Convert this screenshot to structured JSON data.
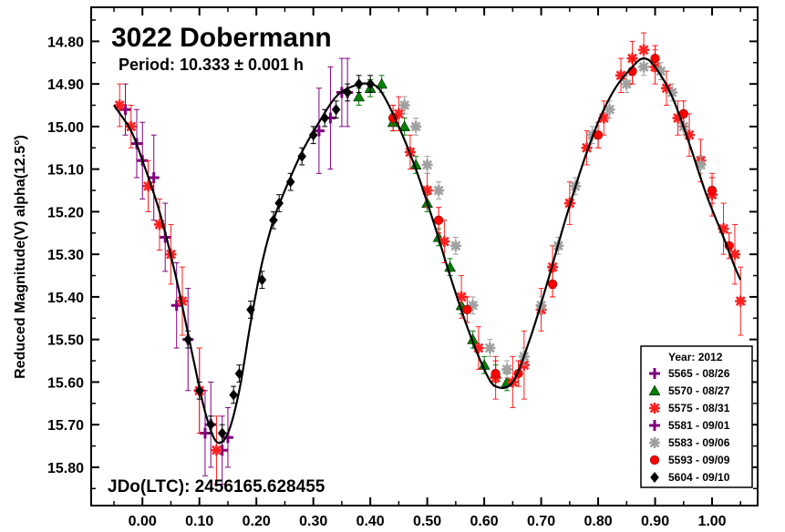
{
  "chart_data": {
    "type": "scatter",
    "title": "3022 Dobermann",
    "subtitle": "Period: 10.333 ± 0.001 h",
    "ylabel": "Reduced Magnitude(V) alpha(12.5°)",
    "xlabel": "",
    "annotation": "JDo(LTC): 2456165.628455",
    "xlim": [
      -0.09,
      1.08
    ],
    "ylim": [
      15.89,
      14.72
    ],
    "y_inverted": true,
    "grid": false,
    "x_ticks": [
      0.0,
      0.1,
      0.2,
      0.3,
      0.4,
      0.5,
      0.6,
      0.7,
      0.8,
      0.9,
      1.0
    ],
    "x_tick_labels": [
      "0.00",
      "0.10",
      "0.20",
      "0.30",
      "0.40",
      "0.50",
      "0.60",
      "0.70",
      "0.80",
      "0.90",
      "1.00"
    ],
    "y_ticks": [
      14.8,
      14.9,
      15.0,
      15.1,
      15.2,
      15.3,
      15.4,
      15.5,
      15.6,
      15.7,
      15.8
    ],
    "y_tick_labels": [
      "14.80",
      "14.90",
      "15.00",
      "15.10",
      "15.20",
      "15.30",
      "15.40",
      "15.50",
      "15.60",
      "15.70",
      "15.80"
    ],
    "legend": {
      "title": "Year: 2012",
      "position": "bottom-right",
      "entries": [
        {
          "label": "5565 - 08/26",
          "marker": "plus",
          "color": "#800080"
        },
        {
          "label": "5570 - 08/27",
          "marker": "triangle",
          "color": "#008000"
        },
        {
          "label": "5575 - 08/31",
          "marker": "asterisk",
          "color": "#ff2020"
        },
        {
          "label": "5581 - 09/01",
          "marker": "plus",
          "color": "#800080"
        },
        {
          "label": "5583 - 09/06",
          "marker": "asterisk",
          "color": "#a0a0a0"
        },
        {
          "label": "5593 - 09/09",
          "marker": "circle",
          "color": "#ff0000"
        },
        {
          "label": "5604 - 09/10",
          "marker": "diamond",
          "color": "#000000"
        }
      ]
    },
    "fit_curve": {
      "x": [
        -0.05,
        -0.02,
        0.0,
        0.03,
        0.06,
        0.09,
        0.11,
        0.13,
        0.15,
        0.17,
        0.19,
        0.21,
        0.23,
        0.25,
        0.28,
        0.31,
        0.34,
        0.37,
        0.4,
        0.42,
        0.45,
        0.48,
        0.51,
        0.54,
        0.57,
        0.6,
        0.62,
        0.65,
        0.68,
        0.71,
        0.74,
        0.77,
        0.8,
        0.83,
        0.86,
        0.88,
        0.9,
        0.93,
        0.96,
        0.99,
        1.02,
        1.04,
        1.05
      ],
      "y": [
        14.95,
        15.01,
        15.08,
        15.2,
        15.36,
        15.55,
        15.67,
        15.74,
        15.72,
        15.62,
        15.46,
        15.32,
        15.22,
        15.15,
        15.06,
        14.99,
        14.93,
        14.905,
        14.9,
        14.92,
        15.0,
        15.1,
        15.22,
        15.35,
        15.47,
        15.57,
        15.61,
        15.6,
        15.5,
        15.37,
        15.23,
        15.1,
        14.99,
        14.91,
        14.86,
        14.84,
        14.86,
        14.93,
        15.04,
        15.16,
        15.26,
        15.33,
        15.36
      ]
    },
    "series": [
      {
        "name": "5565 - 08/26",
        "marker": "plus",
        "color": "#800080",
        "x": [
          -0.03,
          -0.01,
          0.0,
          0.02,
          0.04,
          0.06,
          0.08,
          0.1,
          0.11,
          0.12,
          0.14,
          0.15
        ],
        "y": [
          14.96,
          15.04,
          15.08,
          15.12,
          15.26,
          15.42,
          15.5,
          15.62,
          15.72,
          15.7,
          15.76,
          15.73
        ],
        "err": [
          0.06,
          0.08,
          0.09,
          0.1,
          0.08,
          0.1,
          0.12,
          0.1,
          0.1,
          0.1,
          0.08,
          0.07
        ]
      },
      {
        "name": "5570 - 08/27",
        "marker": "triangle",
        "color": "#008000",
        "x": [
          0.38,
          0.4,
          0.42,
          0.44,
          0.46,
          0.48,
          0.5,
          0.52,
          0.54,
          0.56,
          0.58,
          0.6,
          0.62,
          0.64
        ],
        "y": [
          14.93,
          14.91,
          14.9,
          14.99,
          15.0,
          15.09,
          15.18,
          15.26,
          15.33,
          15.42,
          15.5,
          15.56,
          15.58,
          15.6
        ],
        "err": [
          0.02,
          0.02,
          0.02,
          0.02,
          0.02,
          0.02,
          0.02,
          0.02,
          0.02,
          0.02,
          0.02,
          0.02,
          0.02,
          0.02
        ]
      },
      {
        "name": "5575 - 08/31",
        "marker": "asterisk",
        "color": "#ff2020",
        "x": [
          -0.04,
          -0.02,
          0.01,
          0.03,
          0.05,
          0.07,
          0.1,
          0.13,
          0.45,
          0.47,
          0.5,
          0.53,
          0.56,
          0.59,
          0.62,
          0.65,
          0.67,
          0.7,
          0.72,
          0.75,
          0.78,
          0.81,
          0.84,
          0.86,
          0.88,
          0.9,
          0.92,
          0.94,
          0.96,
          0.98,
          1.0,
          1.02,
          1.04,
          1.05
        ],
        "y": [
          14.95,
          15.0,
          15.14,
          15.23,
          15.3,
          15.41,
          15.62,
          15.76,
          14.97,
          15.06,
          15.15,
          15.27,
          15.4,
          15.52,
          15.59,
          15.6,
          15.56,
          15.43,
          15.33,
          15.18,
          15.05,
          14.98,
          14.88,
          14.84,
          14.82,
          14.86,
          14.91,
          14.98,
          15.02,
          15.08,
          15.16,
          15.24,
          15.3,
          15.41
        ],
        "err": [
          0.05,
          0.05,
          0.06,
          0.06,
          0.07,
          0.08,
          0.1,
          0.08,
          0.04,
          0.04,
          0.04,
          0.05,
          0.05,
          0.05,
          0.05,
          0.06,
          0.08,
          0.05,
          0.05,
          0.05,
          0.04,
          0.04,
          0.04,
          0.04,
          0.04,
          0.04,
          0.04,
          0.04,
          0.05,
          0.05,
          0.05,
          0.06,
          0.07,
          0.08
        ]
      },
      {
        "name": "5581 - 09/01",
        "marker": "plus",
        "color": "#800080",
        "x": [
          0.31,
          0.33,
          0.35,
          0.36
        ],
        "y": [
          15.01,
          14.98,
          14.92,
          14.92
        ],
        "err": [
          0.1,
          0.12,
          0.08,
          0.08
        ]
      },
      {
        "name": "5583 - 09/06",
        "marker": "asterisk",
        "color": "#a0a0a0",
        "x": [
          0.46,
          0.48,
          0.5,
          0.52,
          0.55,
          0.58,
          0.61,
          0.64,
          0.67,
          0.7,
          0.73,
          0.76,
          0.79,
          0.82,
          0.85,
          0.88,
          0.91,
          0.93,
          0.95,
          0.98
        ],
        "y": [
          14.95,
          15.0,
          15.09,
          15.15,
          15.28,
          15.42,
          15.52,
          15.57,
          15.54,
          15.42,
          15.28,
          15.14,
          15.02,
          14.96,
          14.9,
          14.86,
          14.87,
          14.92,
          15.0,
          15.09
        ],
        "err": [
          0.02,
          0.02,
          0.02,
          0.02,
          0.02,
          0.02,
          0.02,
          0.02,
          0.02,
          0.02,
          0.02,
          0.02,
          0.02,
          0.02,
          0.02,
          0.02,
          0.02,
          0.02,
          0.02,
          0.02
        ]
      },
      {
        "name": "5593 - 09/09",
        "marker": "circle",
        "color": "#ff0000",
        "x": [
          0.44,
          0.52,
          0.57,
          0.62,
          0.66,
          0.72,
          0.8,
          0.86,
          0.9,
          0.95,
          1.0,
          1.03
        ],
        "y": [
          14.98,
          15.22,
          15.43,
          15.58,
          15.58,
          15.37,
          15.02,
          14.87,
          14.84,
          14.97,
          15.15,
          15.28
        ],
        "err": [
          0.03,
          0.03,
          0.03,
          0.03,
          0.03,
          0.03,
          0.03,
          0.03,
          0.03,
          0.03,
          0.03,
          0.03
        ]
      },
      {
        "name": "5604 - 09/10",
        "marker": "diamond",
        "color": "#000000",
        "x": [
          0.08,
          0.1,
          0.12,
          0.14,
          0.16,
          0.17,
          0.19,
          0.21,
          0.23,
          0.24,
          0.26,
          0.28,
          0.3,
          0.32,
          0.34,
          0.36,
          0.38,
          0.4
        ],
        "y": [
          15.5,
          15.62,
          15.7,
          15.72,
          15.63,
          15.58,
          15.43,
          15.36,
          15.22,
          15.18,
          15.13,
          15.07,
          15.02,
          14.98,
          14.96,
          14.92,
          14.9,
          14.9
        ],
        "err": [
          0.02,
          0.02,
          0.02,
          0.02,
          0.02,
          0.02,
          0.02,
          0.02,
          0.02,
          0.02,
          0.02,
          0.02,
          0.02,
          0.02,
          0.02,
          0.02,
          0.02,
          0.02
        ]
      }
    ]
  }
}
